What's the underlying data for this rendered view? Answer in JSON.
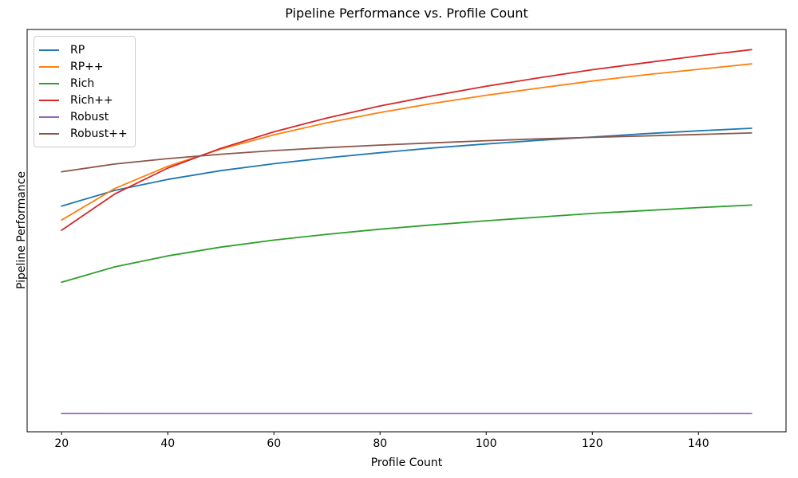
{
  "chart_data": {
    "type": "line",
    "title": "Pipeline Performance vs. Profile Count",
    "xlabel": "Profile Count",
    "ylabel": "Pipeline Performance",
    "x": [
      20,
      30,
      40,
      50,
      60,
      70,
      80,
      90,
      100,
      110,
      120,
      130,
      140,
      150
    ],
    "series": [
      {
        "name": "RP",
        "color": "#1f77b4",
        "values": [
          0.567,
          0.61,
          0.64,
          0.664,
          0.683,
          0.699,
          0.713,
          0.726,
          0.737,
          0.747,
          0.756,
          0.765,
          0.773,
          0.78
        ]
      },
      {
        "name": "RP++",
        "color": "#ff7f0e",
        "values": [
          0.529,
          0.615,
          0.676,
          0.723,
          0.762,
          0.795,
          0.823,
          0.848,
          0.87,
          0.89,
          0.909,
          0.926,
          0.941,
          0.956
        ]
      },
      {
        "name": "Rich",
        "color": "#2ca02c",
        "values": [
          0.359,
          0.401,
          0.431,
          0.455,
          0.474,
          0.49,
          0.504,
          0.516,
          0.527,
          0.537,
          0.547,
          0.555,
          0.563,
          0.57
        ]
      },
      {
        "name": "Rich++",
        "color": "#d62728",
        "values": [
          0.501,
          0.6,
          0.671,
          0.725,
          0.77,
          0.808,
          0.841,
          0.869,
          0.895,
          0.918,
          0.94,
          0.959,
          0.978,
          0.995
        ]
      },
      {
        "name": "Robust",
        "color": "#9467bd",
        "values": [
          0.0,
          0.0,
          0.0,
          0.0,
          0.0,
          0.0,
          0.0,
          0.0,
          0.0,
          0.0,
          0.0,
          0.0,
          0.0,
          0.0
        ]
      },
      {
        "name": "Robust++",
        "color": "#8c564b",
        "values": [
          0.661,
          0.682,
          0.697,
          0.709,
          0.719,
          0.727,
          0.734,
          0.74,
          0.746,
          0.751,
          0.755,
          0.759,
          0.763,
          0.767
        ]
      }
    ],
    "xticks": [
      20,
      40,
      60,
      80,
      100,
      120,
      140
    ],
    "yticks": [],
    "xlim": [
      13.5,
      156.5
    ],
    "ylim": [
      -0.05,
      1.05
    ],
    "grid": false,
    "legend_position": "upper left",
    "line_width": 1.8,
    "frame_color": "#000000",
    "background_color": "#ffffff"
  }
}
